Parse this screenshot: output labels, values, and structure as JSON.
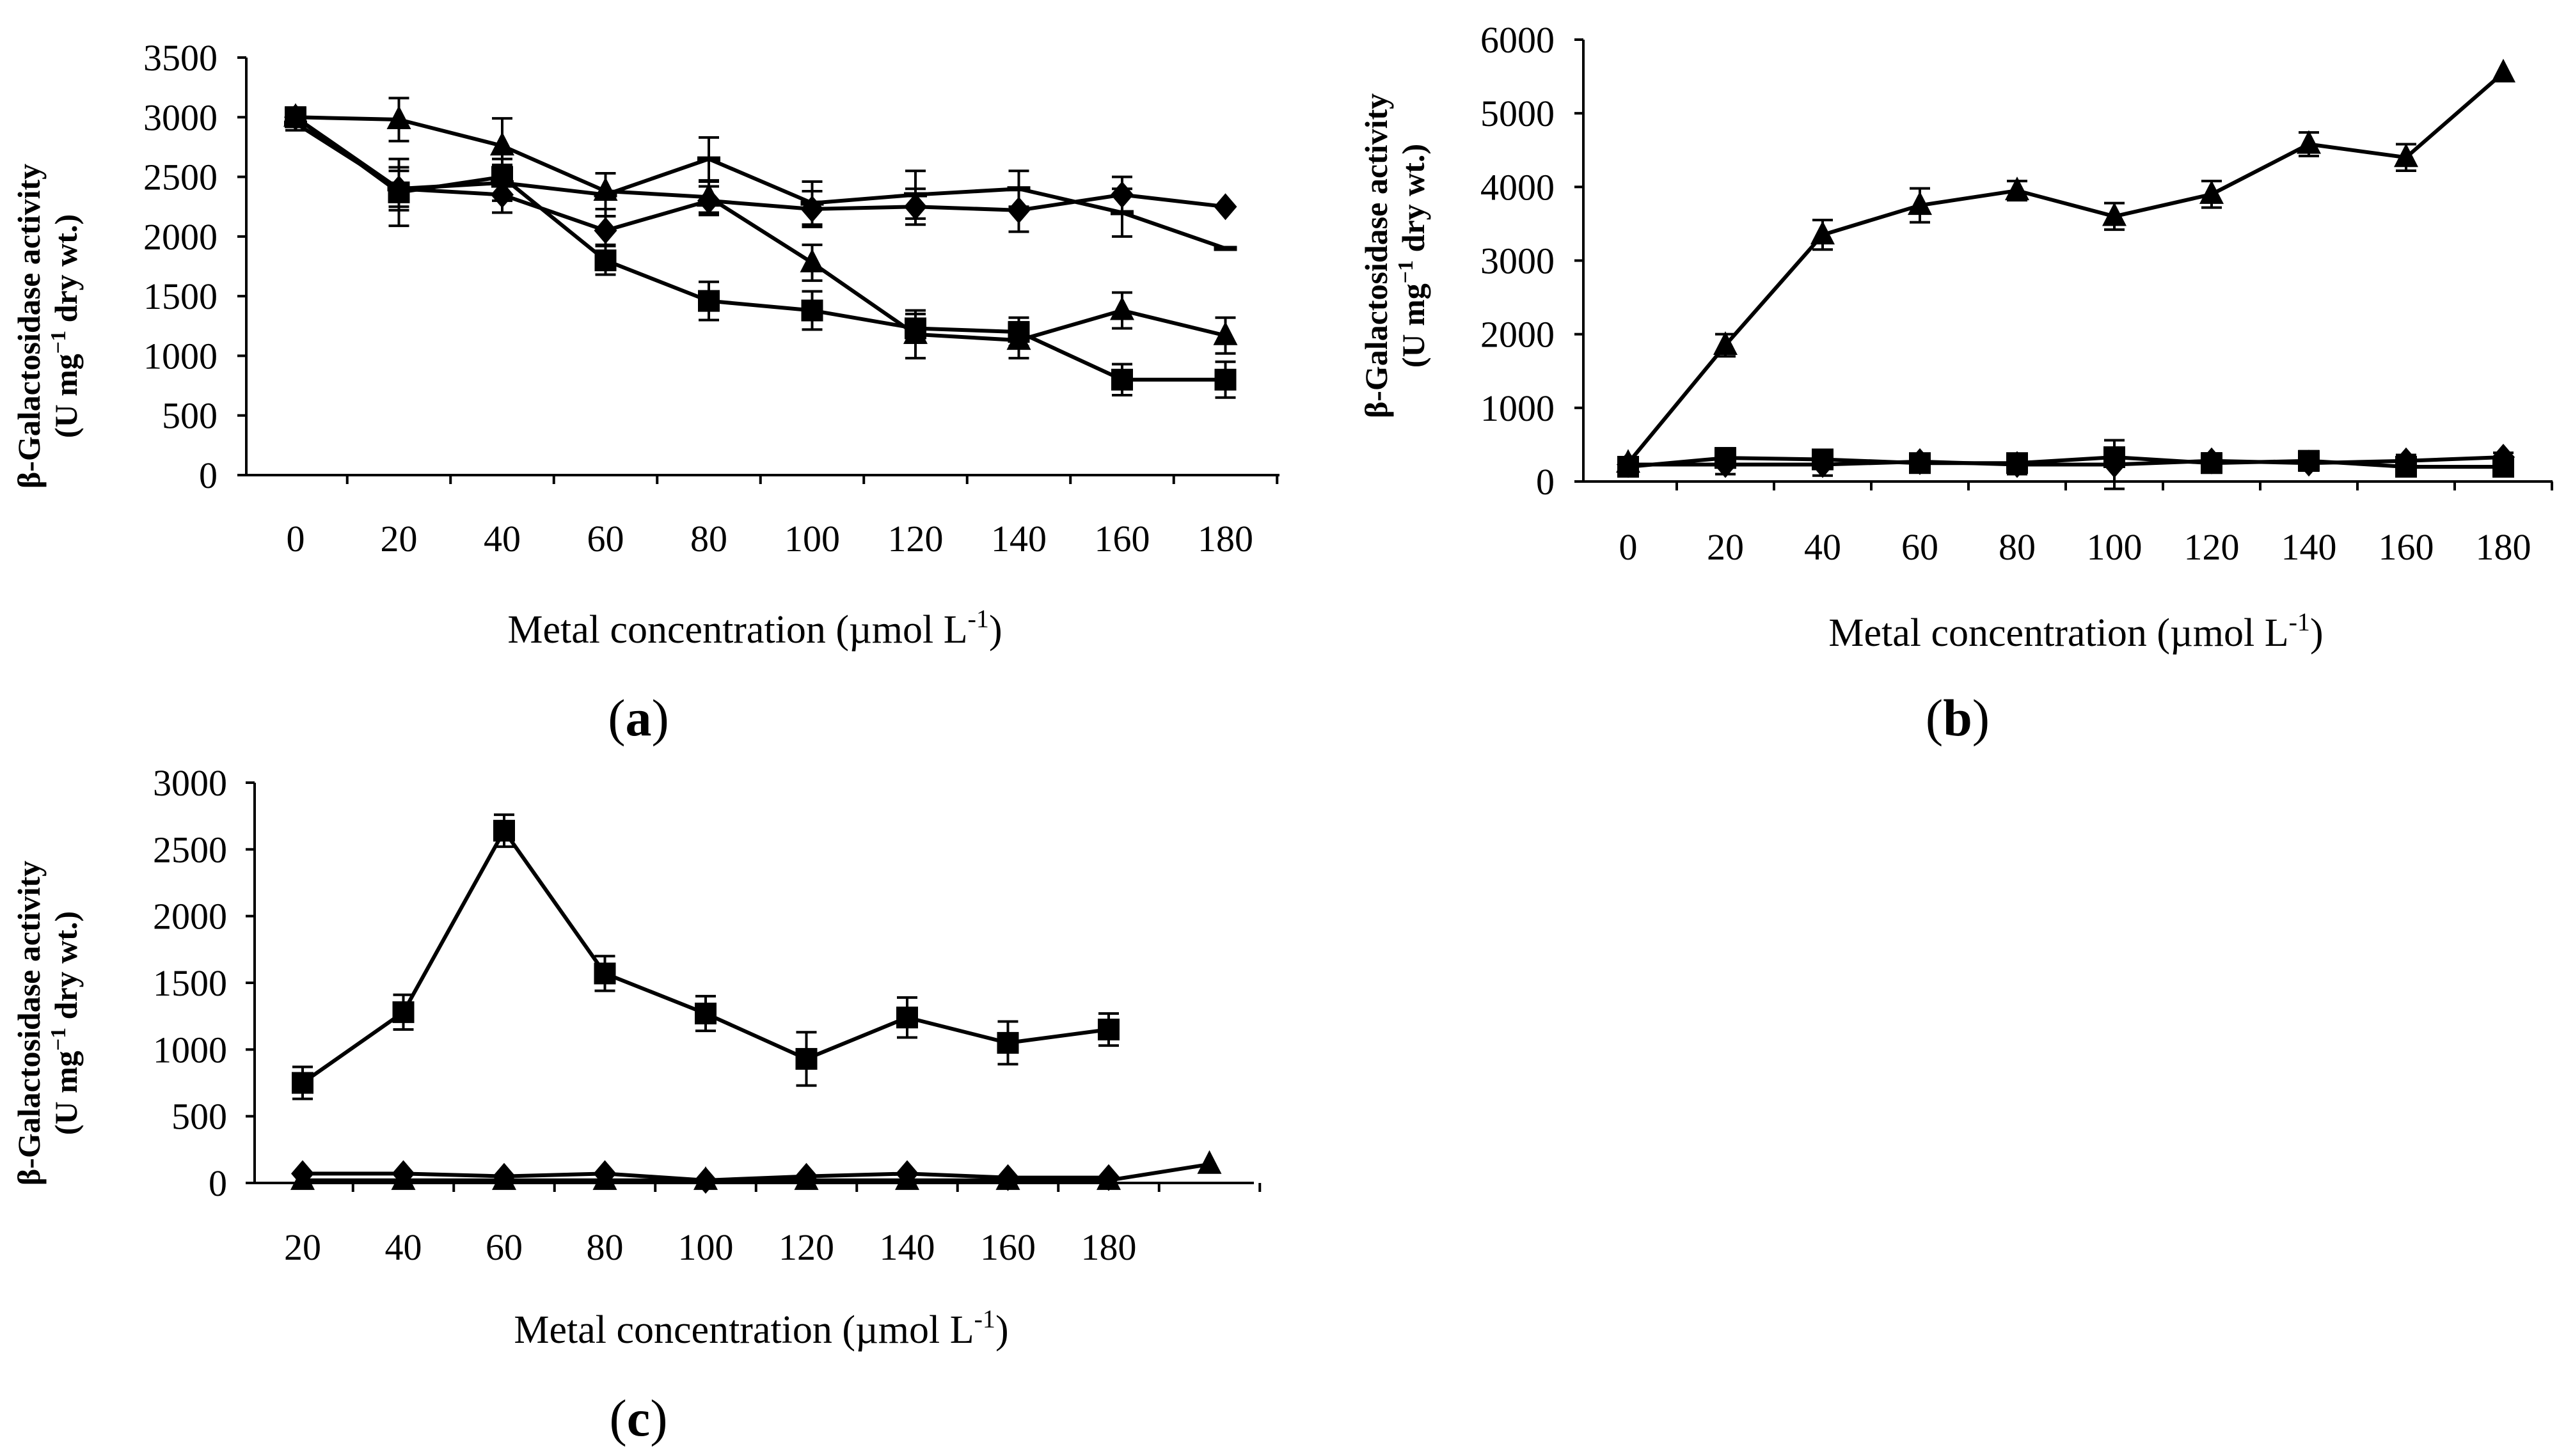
{
  "colors": {
    "ink": "#000000",
    "background": "#ffffff"
  },
  "chart_data": [
    {
      "id": "a",
      "type": "line",
      "panel_label": "a",
      "xlabel_main": "Metal concentration (µmol L",
      "xlabel_sup": "-1",
      "xlabel_close": ")",
      "ylabel_line1": "β-Galactosidase activity",
      "ylabel_line2_pre": "(U mg",
      "ylabel_line2_sup": "−1",
      "ylabel_line2_post": " dry wt.)",
      "categories": [
        "0",
        "20",
        "40",
        "60",
        "80",
        "100",
        "120",
        "140",
        "160",
        "180"
      ],
      "ylim": [
        0,
        3500
      ],
      "yticks": [
        0,
        500,
        1000,
        1500,
        2000,
        2500,
        3000,
        3500
      ],
      "series": [
        {
          "name": "diamond series",
          "marker": "diamond",
          "values": [
            3000,
            2400,
            2350,
            2050,
            2300,
            2230,
            2250,
            2220,
            2350,
            2250
          ],
          "errors": [
            80,
            150,
            150,
            120,
            120,
            150,
            150,
            180,
            150,
            0
          ]
        },
        {
          "name": "square series",
          "marker": "square",
          "values": [
            3000,
            2370,
            2500,
            1800,
            1460,
            1380,
            1230,
            1200,
            800,
            800
          ],
          "errors": [
            60,
            280,
            150,
            120,
            160,
            160,
            120,
            120,
            130,
            150
          ]
        },
        {
          "name": "triangle series",
          "marker": "triangle",
          "values": [
            3000,
            2980,
            2760,
            2380,
            2330,
            1780,
            1180,
            1130,
            1380,
            1170
          ],
          "errors": [
            80,
            180,
            230,
            150,
            130,
            150,
            200,
            150,
            150,
            150
          ]
        },
        {
          "name": "dash series",
          "marker": "dash",
          "values": [
            2950,
            2400,
            2450,
            2350,
            2650,
            2280,
            2350,
            2400,
            2200,
            1900
          ],
          "errors": [
            60,
            180,
            150,
            180,
            180,
            180,
            200,
            150,
            200,
            0
          ]
        }
      ]
    },
    {
      "id": "b",
      "type": "line",
      "panel_label": "b",
      "xlabel_main": "Metal concentration (µmol L",
      "xlabel_sup": "-1",
      "xlabel_close": ")",
      "ylabel_line1": "β-Galactosidase activity",
      "ylabel_line2_pre": "(U mg",
      "ylabel_line2_sup": "−1",
      "ylabel_line2_post": " dry wt.)",
      "categories": [
        "0",
        "20",
        "40",
        "60",
        "80",
        "100",
        "120",
        "140",
        "160",
        "180"
      ],
      "ylim": [
        0,
        6000
      ],
      "yticks": [
        0,
        1000,
        2000,
        3000,
        4000,
        5000,
        6000
      ],
      "series": [
        {
          "name": "triangle series",
          "marker": "triangle",
          "values": [
            250,
            1850,
            3350,
            3750,
            3950,
            3600,
            3900,
            4580,
            4400,
            5550
          ],
          "errors": [
            60,
            150,
            200,
            230,
            130,
            180,
            180,
            160,
            180,
            0
          ]
        },
        {
          "name": "square series",
          "marker": "square",
          "values": [
            200,
            320,
            300,
            250,
            250,
            330,
            250,
            280,
            200,
            200
          ],
          "errors": [
            80,
            130,
            130,
            100,
            100,
            130,
            130,
            130,
            100,
            130
          ]
        },
        {
          "name": "diamond series",
          "marker": "diamond",
          "values": [
            230,
            230,
            230,
            270,
            230,
            230,
            280,
            250,
            280,
            330
          ],
          "errors": [
            60,
            130,
            150,
            100,
            130,
            330,
            100,
            100,
            80,
            60
          ]
        }
      ]
    },
    {
      "id": "c",
      "type": "line",
      "panel_label": "c",
      "xlabel_main": "Metal concentration (µmol L",
      "xlabel_sup": "-1",
      "xlabel_close": ")",
      "ylabel_line1": "β-Galactosidase activity",
      "ylabel_line2_pre": "(U mg",
      "ylabel_line2_sup": "−1",
      "ylabel_line2_post": " dry wt.)",
      "categories": [
        "20",
        "40",
        "60",
        "80",
        "100",
        "120",
        "140",
        "160",
        "180",
        ""
      ],
      "ylim": [
        0,
        3000
      ],
      "yticks": [
        0,
        500,
        1000,
        1500,
        2000,
        2500,
        3000
      ],
      "series": [
        {
          "name": "square series",
          "marker": "square",
          "values": [
            750,
            1280,
            2640,
            1570,
            1270,
            930,
            1240,
            1050,
            1150,
            null
          ],
          "errors": [
            120,
            130,
            120,
            130,
            130,
            200,
            150,
            160,
            120,
            0
          ]
        },
        {
          "name": "diamond series",
          "marker": "diamond",
          "values": [
            70,
            70,
            50,
            70,
            20,
            50,
            70,
            40,
            40,
            null
          ],
          "errors": [
            0,
            0,
            0,
            0,
            0,
            0,
            0,
            0,
            0,
            0
          ]
        },
        {
          "name": "triangle series",
          "marker": "triangle",
          "values": [
            20,
            20,
            20,
            20,
            20,
            20,
            20,
            20,
            20,
            140
          ],
          "errors": [
            0,
            0,
            0,
            0,
            0,
            0,
            0,
            0,
            0,
            0
          ]
        }
      ]
    }
  ]
}
